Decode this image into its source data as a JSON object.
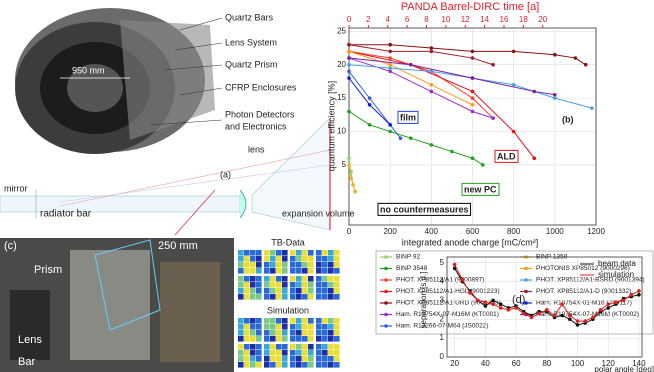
{
  "diagram": {
    "detector_labels": [
      "Quartz Bars",
      "Lens System",
      "Quartz Prism",
      "CFRP Enclosures",
      "Photon Detectors",
      "and Electronics"
    ],
    "diameter": "950 mm",
    "schematic": {
      "panel": "(a)",
      "mirror": "mirror",
      "bar": "radiator bar",
      "lens": "lens",
      "volume": "expansion volume"
    },
    "photo": {
      "panel": "(c)",
      "prism": "Prism",
      "size": "250 mm",
      "lens": "Lens",
      "bar": "Bar"
    },
    "maps": {
      "top": "TB-Data",
      "bottom": "Simulation"
    }
  },
  "chart_data": [
    {
      "type": "line",
      "title": "PANDA Barrel-DIRC time [a]",
      "title_color": "#e0202a",
      "x_label": "integrated anode charge [mC/cm²]",
      "y_label": "quantum efficiency [%]",
      "xlim": [
        0,
        1200
      ],
      "xticks": [
        0,
        200,
        400,
        600,
        800,
        1000,
        1200
      ],
      "x2lim": [
        0,
        25.5
      ],
      "x2ticks": [
        0,
        2,
        4,
        6,
        8,
        10,
        12,
        14,
        16,
        18,
        20
      ],
      "ylim": [
        -4,
        25.5
      ],
      "yticks": [
        5,
        10,
        15,
        20,
        25
      ],
      "grid": true,
      "annotations": [
        "film",
        "ALD",
        "new PC",
        "no countermeasures",
        "(b)"
      ],
      "series": [
        {
          "name": "BINP 92",
          "color": "#8fd36b",
          "x": [
            0,
            10,
            20,
            30
          ],
          "values": [
            6,
            4,
            2,
            1
          ]
        },
        {
          "name": "BINP 3548",
          "color": "#22a022",
          "x": [
            0,
            100,
            200,
            300,
            400,
            500,
            600,
            650
          ],
          "values": [
            13,
            11,
            10,
            9,
            8,
            7,
            6,
            5
          ]
        },
        {
          "name": "PHOT. XP85112/A1 (9000897)",
          "color": "#ff3b2f",
          "x": [
            0,
            200,
            400,
            600,
            700
          ],
          "values": [
            22,
            21,
            19,
            15,
            12
          ]
        },
        {
          "name": "PHOT. XP85112/A1-HGL (9001223)",
          "color": "#e8121a",
          "x": [
            0,
            300,
            600,
            800,
            900
          ],
          "values": [
            22,
            20,
            16,
            10,
            6
          ]
        },
        {
          "name": "PHOT. XP85112/A1-URD (9001393)",
          "color": "#8b1010",
          "x": [
            0,
            200,
            400,
            600,
            800,
            1000,
            1100,
            1150
          ],
          "values": [
            23,
            23,
            22.5,
            22,
            22,
            21.5,
            21,
            20
          ]
        },
        {
          "name": "Ham. R10754X-07-M16M (KT0001)",
          "color": "#9a2fd0",
          "x": [
            0,
            200,
            400,
            600,
            700
          ],
          "values": [
            21,
            19,
            16,
            13,
            12
          ]
        },
        {
          "name": "Ham. R13266-07-M64 (JS0022)",
          "color": "#3060d8",
          "x": [
            0,
            100,
            200,
            250
          ],
          "values": [
            19,
            15,
            11,
            9
          ]
        },
        {
          "name": "BINP 1359",
          "color": "#f0b020",
          "x": [
            0,
            10,
            20,
            30
          ],
          "values": [
            5,
            3,
            2,
            1
          ]
        },
        {
          "name": "PHOTONIS XP85012 (9000296)",
          "color": "#ff9a1a",
          "x": [
            0,
            200,
            400,
            600
          ],
          "values": [
            22,
            20,
            17,
            14
          ]
        },
        {
          "name": "PHOT. XP85112/A1-BSRD (9001394)",
          "color": "#4aa3df",
          "x": [
            0,
            200,
            400,
            600,
            800,
            1000,
            1180
          ],
          "values": [
            20,
            19.5,
            19,
            18,
            17,
            15,
            13.5
          ]
        },
        {
          "name": "PHOT. XP85112/A1-D (9001332)",
          "color": "#a01c2c",
          "x": [
            0,
            200,
            400,
            600,
            700
          ],
          "values": [
            23,
            22,
            22,
            21,
            20
          ]
        },
        {
          "name": "Ham. R10754X-01-M16 (JT0117)",
          "color": "#1020e0",
          "x": [
            0,
            100,
            200
          ],
          "values": [
            18,
            14,
            11
          ]
        },
        {
          "name": "Ham. R10754X-07-M16M (KT0002)",
          "color": "#7a1fa8",
          "x": [
            0,
            300,
            600,
            900,
            1000
          ],
          "values": [
            21,
            20,
            18,
            16,
            15.5
          ]
        }
      ]
    },
    {
      "type": "line",
      "x_label": "polar angle [deg]",
      "y_label": "separation [s.d.]",
      "panel": "(d)",
      "xlim": [
        15,
        142
      ],
      "xticks": [
        20,
        40,
        60,
        80,
        100,
        120,
        140
      ],
      "ylim": [
        0,
        5.3
      ],
      "yticks": [
        0,
        1,
        2,
        3,
        4,
        5
      ],
      "grid": true,
      "x": [
        20,
        25,
        30,
        35,
        40,
        45,
        50,
        55,
        60,
        65,
        70,
        75,
        80,
        85,
        90,
        95,
        100,
        105,
        110,
        115,
        120,
        125,
        130,
        135,
        140
      ],
      "series": [
        {
          "name": "beam data",
          "color": "#111111",
          "values": [
            4.7,
            4.0,
            3.5,
            3.0,
            2.7,
            3.0,
            2.8,
            2.6,
            2.7,
            2.4,
            2.2,
            2.4,
            2.4,
            2.1,
            2.2,
            2.0,
            1.7,
            1.8,
            2.0,
            2.4,
            2.6,
            2.8,
            3.1,
            3.2,
            3.3
          ]
        },
        {
          "name": "simulation",
          "color": "#e02020",
          "values": [
            4.9,
            4.1,
            3.4,
            3.0,
            2.9,
            2.8,
            2.6,
            2.5,
            2.6,
            2.3,
            2.1,
            2.3,
            2.5,
            2.2,
            2.8,
            2.2,
            1.9,
            1.9,
            2.1,
            2.5,
            2.8,
            2.9,
            3.0,
            3.3,
            3.5
          ]
        }
      ]
    }
  ]
}
